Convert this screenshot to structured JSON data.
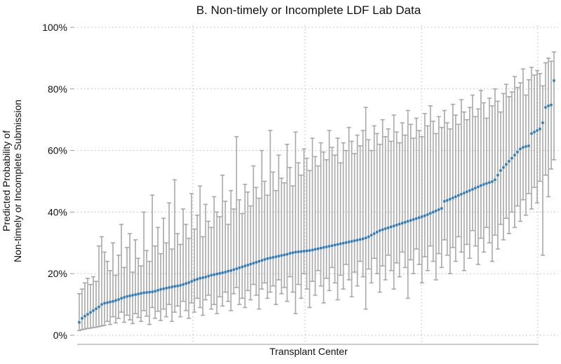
{
  "chart_data": {
    "type": "scatter",
    "title": "B. Non-timely or Incomplete LDF Lab Data",
    "xlabel": "Transplant Center",
    "ylabel": [
      "Predicted Probability of",
      "Non-timely or Incomplete Submission"
    ],
    "ylim": [
      0,
      100
    ],
    "yticks": [
      0,
      20,
      40,
      60,
      80,
      100
    ],
    "ytick_labels": [
      "0%",
      "20%",
      "40%",
      "60%",
      "80%",
      "100%"
    ],
    "grid": true,
    "colors": {
      "point": "#2b7bba",
      "interval": "#a8a8a8",
      "grid": "#b8b8b8"
    },
    "estimate": [
      4.2,
      5.5,
      6.2,
      6.8,
      7.4,
      8.0,
      8.6,
      9.2,
      10.0,
      10.4,
      10.6,
      10.8,
      11.0,
      11.3,
      11.6,
      12.0,
      12.3,
      12.6,
      12.8,
      13.0,
      13.2,
      13.4,
      13.6,
      13.8,
      13.9,
      14.0,
      14.1,
      14.3,
      14.6,
      14.9,
      15.1,
      15.3,
      15.5,
      15.7,
      15.9,
      16.0,
      16.2,
      16.5,
      16.8,
      17.1,
      17.5,
      17.9,
      18.2,
      18.5,
      18.7,
      18.9,
      19.2,
      19.5,
      19.7,
      19.9,
      20.1,
      20.3,
      20.5,
      20.8,
      21.0,
      21.3,
      21.6,
      21.9,
      22.2,
      22.5,
      22.8,
      23.1,
      23.4,
      23.7,
      24.0,
      24.3,
      24.6,
      24.9,
      25.1,
      25.3,
      25.5,
      25.7,
      25.9,
      26.1,
      26.3,
      26.6,
      26.8,
      27.0,
      27.1,
      27.2,
      27.3,
      27.4,
      27.5,
      27.7,
      27.9,
      28.1,
      28.3,
      28.5,
      28.7,
      28.9,
      29.1,
      29.3,
      29.5,
      29.7,
      29.9,
      30.1,
      30.3,
      30.5,
      30.7,
      30.9,
      31.1,
      31.3,
      31.6,
      32.0,
      32.5,
      33.0,
      33.5,
      34.0,
      34.3,
      34.6,
      34.9,
      35.2,
      35.5,
      35.8,
      36.1,
      36.4,
      36.7,
      37.0,
      37.3,
      37.6,
      37.9,
      38.2,
      38.5,
      38.8,
      39.2,
      39.6,
      40.0,
      40.4,
      40.8,
      41.2,
      43.5,
      43.8,
      44.2,
      44.6,
      45.0,
      45.4,
      45.8,
      46.2,
      46.6,
      47.0,
      47.4,
      47.8,
      48.2,
      48.6,
      49.0,
      49.3,
      49.6,
      49.9,
      50.5,
      52.0,
      53.5,
      54.5,
      55.5,
      56.5,
      57.5,
      58.5,
      59.5,
      60.5,
      61.0,
      61.3,
      61.5,
      65.5,
      66.0,
      66.5,
      67.0,
      69.0,
      74.0,
      74.5,
      74.8,
      82.7
    ],
    "lower": [
      1.5,
      1.8,
      2.0,
      2.2,
      2.3,
      2.5,
      2.6,
      2.8,
      3.0,
      3.2,
      4.5,
      3.5,
      6.0,
      4.0,
      5.5,
      7.5,
      4.2,
      6.5,
      5.0,
      3.8,
      7.0,
      5.8,
      4.5,
      8.0,
      6.2,
      3.5,
      9.0,
      5.5,
      7.8,
      4.8,
      8.5,
      6.0,
      10.0,
      4.5,
      7.5,
      9.5,
      6.0,
      11.0,
      8.0,
      5.5,
      10.5,
      7.5,
      12.0,
      9.0,
      6.5,
      11.5,
      13.0,
      8.5,
      10.0,
      7.0,
      12.5,
      9.5,
      14.0,
      11.0,
      8.0,
      13.5,
      15.5,
      10.0,
      12.0,
      9.0,
      14.5,
      11.5,
      16.5,
      13.0,
      8.5,
      15.0,
      17.0,
      12.0,
      14.0,
      16.0,
      10.0,
      18.0,
      13.5,
      15.5,
      11.0,
      19.0,
      14.0,
      7.0,
      16.5,
      12.0,
      20.0,
      15.0,
      9.0,
      17.5,
      13.0,
      21.0,
      16.0,
      10.5,
      18.5,
      14.5,
      22.0,
      17.0,
      11.5,
      19.5,
      15.0,
      23.0,
      18.0,
      12.5,
      20.5,
      16.0,
      24.0,
      19.0,
      8.5,
      21.5,
      17.0,
      25.0,
      20.0,
      14.0,
      22.5,
      18.0,
      26.0,
      21.0,
      15.0,
      23.5,
      19.0,
      27.0,
      22.0,
      12.0,
      24.5,
      20.0,
      28.0,
      23.0,
      17.0,
      25.5,
      21.0,
      29.0,
      24.0,
      18.0,
      26.5,
      22.0,
      31.0,
      26.0,
      20.0,
      28.5,
      24.0,
      32.0,
      27.0,
      21.0,
      29.5,
      25.0,
      34.0,
      29.0,
      23.0,
      31.5,
      27.0,
      35.0,
      30.0,
      24.0,
      32.5,
      28.0,
      36.0,
      31.0,
      38.0,
      33.0,
      40.0,
      35.0,
      42.0,
      37.0,
      44.0,
      39.0,
      46.0,
      41.0,
      48.0,
      43.0,
      50.0,
      26.0,
      52.0,
      45.0,
      54.0,
      57.0
    ],
    "upper": [
      13.5,
      15.0,
      17.0,
      18.5,
      16.5,
      19.0,
      17.5,
      29.0,
      32.0,
      27.0,
      24.0,
      21.0,
      30.0,
      19.5,
      26.0,
      36.0,
      22.0,
      28.5,
      33.0,
      20.5,
      31.0,
      25.0,
      22.5,
      40.0,
      27.5,
      24.0,
      45.5,
      29.0,
      35.0,
      26.5,
      38.0,
      30.0,
      43.0,
      28.0,
      50.5,
      33.0,
      29.5,
      41.0,
      36.0,
      31.5,
      46.0,
      34.5,
      39.0,
      48.5,
      32.0,
      42.5,
      37.0,
      35.0,
      45.0,
      40.0,
      38.5,
      52.0,
      43.5,
      36.0,
      47.0,
      41.0,
      64.5,
      44.0,
      39.5,
      49.0,
      46.5,
      42.0,
      55.0,
      48.0,
      44.5,
      60.0,
      50.0,
      45.5,
      66.5,
      53.0,
      47.0,
      58.5,
      51.0,
      49.5,
      62.0,
      54.5,
      48.5,
      66.0,
      56.0,
      52.0,
      60.5,
      57.5,
      53.5,
      64.0,
      58.0,
      55.0,
      62.5,
      59.5,
      57.0,
      66.5,
      61.0,
      58.5,
      64.0,
      56.0,
      62.5,
      60.0,
      67.5,
      63.0,
      59.0,
      65.0,
      61.5,
      66.5,
      74.0,
      63.5,
      60.0,
      68.0,
      65.5,
      62.0,
      70.0,
      64.5,
      67.0,
      63.0,
      71.5,
      66.0,
      62.5,
      69.0,
      65.0,
      73.0,
      68.5,
      64.0,
      70.5,
      66.5,
      64.5,
      72.0,
      68.0,
      74.5,
      69.5,
      65.5,
      71.0,
      67.5,
      73.0,
      69.0,
      67.0,
      75.0,
      71.5,
      68.5,
      76.5,
      72.5,
      70.0,
      74.0,
      78.0,
      71.0,
      73.5,
      79.5,
      75.5,
      70.5,
      77.0,
      74.5,
      80.0,
      76.0,
      72.5,
      78.5,
      81.5,
      77.5,
      79.0,
      84.0,
      80.5,
      82.0,
      86.5,
      78.0,
      83.0,
      87.0,
      84.5,
      86.0,
      85.0,
      81.0,
      88.5,
      90.0,
      89.0,
      92.0
    ]
  }
}
